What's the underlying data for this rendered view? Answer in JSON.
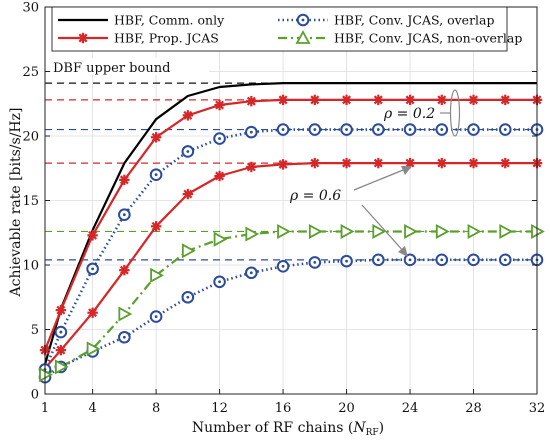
{
  "chart_data": {
    "type": "line",
    "xlabel": "Number of RF chains (N_RF)",
    "xlabel_main": "Number of RF chains (",
    "xlabel_sym": "N",
    "xlabel_sub": "RF",
    "xlabel_close": ")",
    "ylabel": "Achievable rate [bits/s/Hz]",
    "xlim": [
      1,
      32
    ],
    "ylim": [
      0,
      30
    ],
    "x_ticks": [
      1,
      4,
      8,
      12,
      16,
      20,
      24,
      28,
      32
    ],
    "y_ticks": [
      0,
      5,
      10,
      15,
      20,
      25,
      30
    ],
    "grid": true,
    "legend_position": "top",
    "x": [
      1,
      2,
      4,
      6,
      8,
      10,
      12,
      14,
      16,
      18,
      20,
      22,
      24,
      26,
      28,
      30,
      32
    ],
    "series": [
      {
        "name": "HBF, Comm. only",
        "color": "#000000",
        "style": "solid",
        "marker": "none",
        "values": [
          2.3,
          6.6,
          12.7,
          17.9,
          21.3,
          23.1,
          23.8,
          24.0,
          24.1,
          24.1,
          24.1,
          24.1,
          24.1,
          24.1,
          24.1,
          24.1,
          24.1
        ]
      },
      {
        "name": "HBF, Prop. JCAS",
        "color": "#d62728",
        "style": "solid",
        "marker": "asterisk",
        "values": [
          3.4,
          6.5,
          12.3,
          16.6,
          19.9,
          21.6,
          22.4,
          22.7,
          22.8,
          22.8,
          22.8,
          22.8,
          22.8,
          22.8,
          22.8,
          22.8,
          22.8
        ]
      },
      {
        "name": "",
        "color": "#d62728",
        "style": "solid",
        "marker": "asterisk",
        "values": [
          2.0,
          3.4,
          6.3,
          9.6,
          13.0,
          15.5,
          16.9,
          17.6,
          17.8,
          17.9,
          17.9,
          17.9,
          17.9,
          17.9,
          17.9,
          17.9,
          17.9
        ]
      },
      {
        "name": "HBF, Conv. JCAS, overlap",
        "color": "#2b4c9b",
        "style": "dotted",
        "marker": "circle",
        "values": [
          1.9,
          4.8,
          9.7,
          13.9,
          17.0,
          18.8,
          19.8,
          20.3,
          20.5,
          20.5,
          20.5,
          20.5,
          20.5,
          20.5,
          20.5,
          20.5,
          20.5
        ]
      },
      {
        "name": "",
        "color": "#2b4c9b",
        "style": "dotted",
        "marker": "circle",
        "values": [
          1.3,
          2.1,
          3.3,
          4.4,
          6.0,
          7.5,
          8.7,
          9.4,
          9.9,
          10.2,
          10.3,
          10.4,
          10.4,
          10.4,
          10.4,
          10.4,
          10.4
        ]
      },
      {
        "name": "HBF, Conv. JCAS, non-overlap",
        "color": "#5aa02c",
        "style": "dashdot",
        "marker": "triangle-right",
        "values": [
          1.5,
          2.1,
          3.5,
          6.2,
          9.2,
          11.1,
          12.0,
          12.4,
          12.6,
          12.6,
          12.6,
          12.6,
          12.6,
          12.6,
          12.6,
          12.6,
          12.6
        ]
      }
    ],
    "reference_lines": [
      {
        "y": 24.1,
        "color": "#111111"
      },
      {
        "y": 22.8,
        "color": "#d62728"
      },
      {
        "y": 20.5,
        "color": "#2b4c9b"
      },
      {
        "y": 17.9,
        "color": "#d62728"
      },
      {
        "y": 12.6,
        "color": "#5aa02c"
      },
      {
        "y": 10.4,
        "color": "#2b4c9b"
      }
    ],
    "annotations": {
      "dbf": "DBF upper bound",
      "rho_low": "ρ = 0.2",
      "rho_high": "ρ = 0.6"
    }
  }
}
